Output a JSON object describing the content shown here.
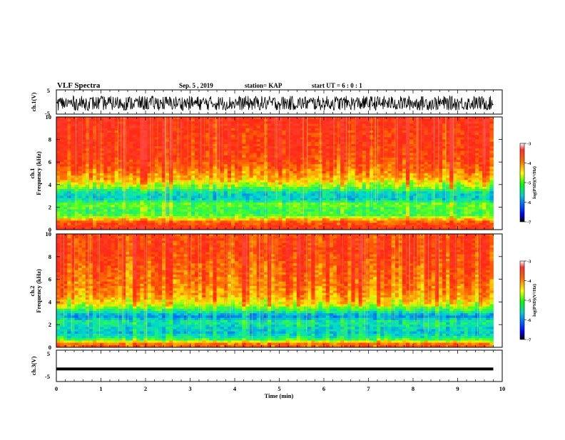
{
  "header": {
    "title": "VLF Spectra",
    "date": "Sep. 5 , 2019",
    "station": "station= KAP",
    "start": "start UT = 6 : 0 : 1"
  },
  "panels": {
    "ch1_wave": {
      "ylabel": "ch.1(V)",
      "ticks": [
        "5",
        "-5"
      ]
    },
    "ch1_spec": {
      "ylabel_top": "ch.1",
      "ylabel": "Frequency (kHz)",
      "ticks": [
        "10",
        "8",
        "6",
        "4",
        "2",
        "0"
      ]
    },
    "ch2_spec": {
      "ylabel_top": "ch.2",
      "ylabel": "Frequency (kHz)",
      "ticks": [
        "10",
        "8",
        "6",
        "4",
        "2",
        "0"
      ]
    },
    "ch3_wave": {
      "ylabel": "ch.3(V)",
      "ticks": [
        "5",
        "-5"
      ]
    }
  },
  "colorbar": {
    "label": "log(PSD)(V²/Hz)",
    "ticks": [
      "-3",
      "-4",
      "-5",
      "-6",
      "-7"
    ],
    "colors": [
      "#ffffff",
      "#ff3030",
      "#ff6600",
      "#ffff00",
      "#00ff00",
      "#00d0d0",
      "#0066ff",
      "#0000ff",
      "#000000"
    ]
  },
  "xaxis": {
    "label": "Time (min)",
    "ticks": [
      "0",
      "1",
      "2",
      "3",
      "4",
      "5",
      "6",
      "7",
      "8",
      "9",
      "10"
    ]
  },
  "chart_data": {
    "type": "heatmap",
    "title": "VLF Spectra",
    "xlabel": "Time (min)",
    "ylabel": "Frequency (kHz)",
    "xlim": [
      0,
      10
    ],
    "ylim": [
      0,
      10
    ],
    "data_x_extent": [
      0,
      9.8
    ],
    "clim": [
      -7,
      -3
    ],
    "colorbar_label": "log(PSD)(V²/Hz)",
    "ch1_psd_profile": [
      {
        "freq_khz": 0.25,
        "log_psd": -3.6
      },
      {
        "freq_khz": 0.75,
        "log_psd": -4.0
      },
      {
        "freq_khz": 1.25,
        "log_psd": -5.0
      },
      {
        "freq_khz": 1.75,
        "log_psd": -5.1
      },
      {
        "freq_khz": 2.25,
        "log_psd": -4.9
      },
      {
        "freq_khz": 2.75,
        "log_psd": -5.6
      },
      {
        "freq_khz": 3.25,
        "log_psd": -5.5
      },
      {
        "freq_khz": 3.75,
        "log_psd": -4.9
      },
      {
        "freq_khz": 4.5,
        "log_psd": -4.3
      },
      {
        "freq_khz": 5.5,
        "log_psd": -3.9
      },
      {
        "freq_khz": 6.5,
        "log_psd": -3.7
      },
      {
        "freq_khz": 7.5,
        "log_psd": -3.6
      },
      {
        "freq_khz": 8.5,
        "log_psd": -3.6
      },
      {
        "freq_khz": 9.5,
        "log_psd": -3.5
      }
    ],
    "ch2_psd_profile": [
      {
        "freq_khz": 0.25,
        "log_psd": -3.9
      },
      {
        "freq_khz": 0.75,
        "log_psd": -5.2
      },
      {
        "freq_khz": 1.25,
        "log_psd": -5.6
      },
      {
        "freq_khz": 1.75,
        "log_psd": -5.5
      },
      {
        "freq_khz": 2.25,
        "log_psd": -5.3
      },
      {
        "freq_khz": 2.75,
        "log_psd": -5.9
      },
      {
        "freq_khz": 3.25,
        "log_psd": -5.2
      },
      {
        "freq_khz": 3.75,
        "log_psd": -4.6
      },
      {
        "freq_khz": 4.5,
        "log_psd": -4.2
      },
      {
        "freq_khz": 5.5,
        "log_psd": -4.0
      },
      {
        "freq_khz": 6.5,
        "log_psd": -3.9
      },
      {
        "freq_khz": 7.5,
        "log_psd": -3.8
      },
      {
        "freq_khz": 8.5,
        "log_psd": -3.7
      },
      {
        "freq_khz": 9.5,
        "log_psd": -3.7
      }
    ],
    "ch1_waveform": {
      "ylim": [
        -5,
        5
      ],
      "amplitude_range": [
        -3.5,
        2.5
      ]
    },
    "ch3_waveform": {
      "ylim": [
        -5,
        5
      ],
      "level": -1.0
    }
  }
}
